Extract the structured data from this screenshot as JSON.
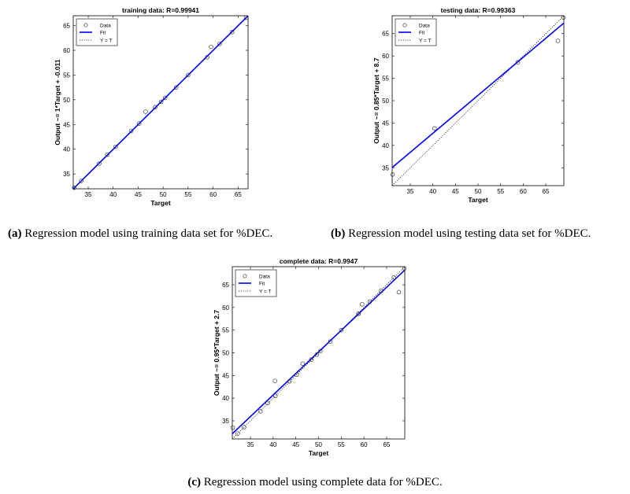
{
  "chart_data": [
    {
      "type": "scatter",
      "title": "training data: R=0.99941",
      "xlabel": "Target",
      "ylabel": "Output ~= 1*Target + -0.011",
      "xlim": [
        32,
        67
      ],
      "ylim": [
        32,
        67
      ],
      "xticks": [
        35,
        40,
        45,
        50,
        55,
        60,
        65
      ],
      "yticks": [
        35,
        40,
        45,
        50,
        55,
        60,
        65
      ],
      "legend": {
        "position": "top-left",
        "entries": [
          "Data",
          "Fit",
          "Y = T"
        ]
      },
      "fit": {
        "slope": 1.0,
        "intercept": -0.011
      },
      "x": [
        32.2,
        33.6,
        37.2,
        38.8,
        40.5,
        43.6,
        45.2,
        46.5,
        48.4,
        49.6,
        50.4,
        52.6,
        55.0,
        58.8,
        59.6,
        61.3,
        63.8,
        66.6
      ],
      "y": [
        32.2,
        33.6,
        37.1,
        38.9,
        40.5,
        43.7,
        45.2,
        47.6,
        48.5,
        49.6,
        50.4,
        52.5,
        55.0,
        58.6,
        60.7,
        61.3,
        63.7,
        66.6
      ]
    },
    {
      "type": "scatter",
      "title": "testing data: R=0.99363",
      "xlabel": "Target",
      "ylabel": "Output ~= 0.85*Target + 8.7",
      "xlim": [
        31,
        69
      ],
      "ylim": [
        31,
        69
      ],
      "xticks": [
        35,
        40,
        45,
        50,
        55,
        60,
        65
      ],
      "yticks": [
        35,
        40,
        45,
        50,
        55,
        60,
        65
      ],
      "legend": {
        "position": "top-left",
        "entries": [
          "Data",
          "Fit",
          "Y = T"
        ]
      },
      "fit": {
        "slope": 0.85,
        "intercept": 8.7
      },
      "x": [
        31.1,
        40.4,
        58.8,
        67.7,
        68.9
      ],
      "y": [
        33.5,
        43.8,
        58.6,
        63.4,
        68.6
      ]
    },
    {
      "type": "scatter",
      "title": "complete data: R=0.9947",
      "xlabel": "Target",
      "ylabel": "Output ~= 0.95*Target + 2.7",
      "xlim": [
        31,
        69
      ],
      "ylim": [
        31,
        69
      ],
      "xticks": [
        35,
        40,
        45,
        50,
        55,
        60,
        65
      ],
      "yticks": [
        35,
        40,
        45,
        50,
        55,
        60,
        65
      ],
      "legend": {
        "position": "top-left",
        "entries": [
          "Data",
          "Fit",
          "Y = T"
        ]
      },
      "fit": {
        "slope": 0.95,
        "intercept": 2.7
      },
      "x": [
        31.1,
        32.2,
        33.6,
        37.2,
        38.8,
        40.4,
        40.5,
        43.6,
        45.2,
        46.5,
        48.4,
        49.6,
        50.4,
        52.6,
        55.0,
        58.8,
        58.8,
        59.6,
        61.3,
        63.8,
        66.6,
        67.7,
        68.9
      ],
      "y": [
        33.5,
        32.2,
        33.6,
        37.1,
        38.9,
        43.8,
        40.5,
        43.7,
        45.2,
        47.6,
        48.5,
        49.6,
        50.4,
        52.5,
        55.0,
        58.6,
        58.6,
        60.7,
        61.3,
        63.7,
        66.6,
        63.4,
        68.6
      ]
    }
  ],
  "captions": {
    "a": {
      "label": "(a)",
      "text": "Regression model using training data set for %DEC."
    },
    "b": {
      "label": "(b)",
      "text": "Regression model using testing data set for %DEC."
    },
    "c": {
      "label": "(c)",
      "text": "Regression model using complete data for %DEC."
    }
  },
  "colors": {
    "fit": "#0000ff",
    "data": "#333333",
    "identity": "#000000"
  }
}
